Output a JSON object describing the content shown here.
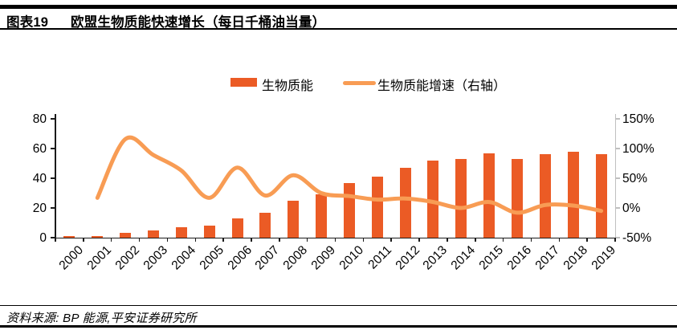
{
  "figure": {
    "label": "图表19",
    "title": "欧盟生物质能快速增长（每日千桶油当量）"
  },
  "legend": {
    "items": [
      {
        "label": "生物质能",
        "type": "bar"
      },
      {
        "label": "生物质能增速（右轴）",
        "type": "line"
      }
    ]
  },
  "chart_data": {
    "type": "bar+line combo",
    "title": "欧盟生物质能快速增长（每日千桶油当量）",
    "categories": [
      "2000",
      "2001",
      "2002",
      "2003",
      "2004",
      "2005",
      "2006",
      "2007",
      "2008",
      "2009",
      "2010",
      "2011",
      "2012",
      "2013",
      "2014",
      "2015",
      "2016",
      "2017",
      "2018",
      "2019"
    ],
    "series": [
      {
        "name": "生物质能",
        "type": "bar",
        "axis": "left",
        "color": "#EB5B25",
        "values": [
          1,
          1,
          3,
          5,
          7,
          8,
          13,
          17,
          25,
          29,
          37,
          41,
          47,
          52,
          53,
          57,
          53,
          56,
          58,
          56
        ]
      },
      {
        "name": "生物质能增速（右轴）",
        "type": "line",
        "axis": "right",
        "color": "#F89C54",
        "values": [
          null,
          17,
          116,
          89,
          63,
          17,
          68,
          21,
          55,
          25,
          20,
          14,
          16,
          10,
          0,
          10,
          -8,
          5,
          4,
          -5
        ]
      }
    ],
    "left_axis": {
      "min": 0,
      "max": 80,
      "tick_values": [
        0,
        20,
        40,
        60,
        80
      ],
      "tick_labels": [
        "0",
        "20",
        "40",
        "60",
        "80"
      ]
    },
    "right_axis": {
      "min": -50,
      "max": 150,
      "tick_values": [
        -50,
        0,
        50,
        100,
        150
      ],
      "tick_labels": [
        "-50%",
        "0%",
        "50%",
        "100%",
        "150%"
      ]
    },
    "grid": "off",
    "legend_position": "top-center"
  },
  "source": {
    "text": "资料来源: BP 能源,平安证券研究所"
  },
  "colors": {
    "bar": "#EB5B25",
    "line": "#F89C54",
    "axis": "#1a1a1a",
    "right_axis_line": "#bfbfbf",
    "rule": "#000000"
  }
}
